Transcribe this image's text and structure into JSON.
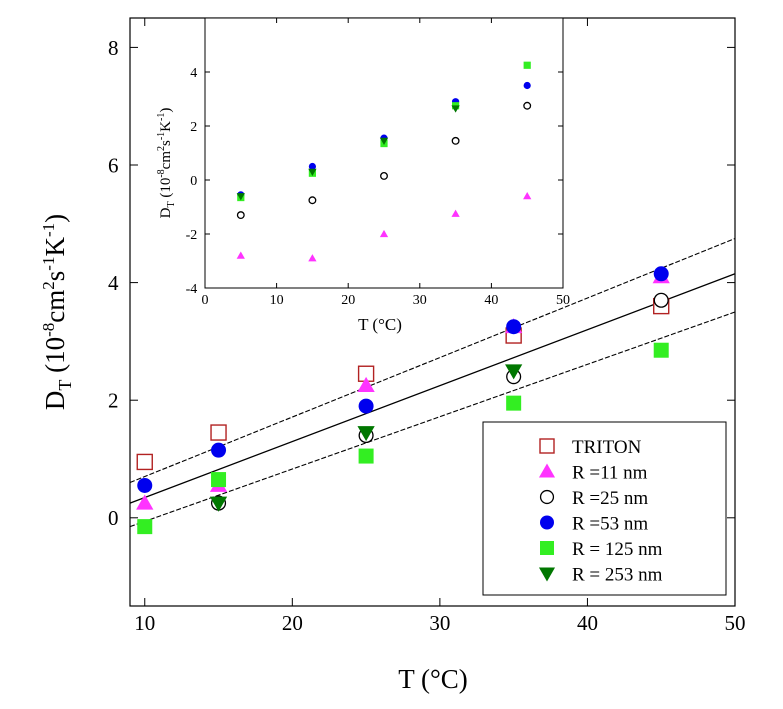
{
  "chart_data": [
    {
      "type": "scatter",
      "title": "",
      "xlabel": "T (°C)",
      "ylabel": "D_T (10^-8 cm^2 s^-1 K^-1)",
      "xlim": [
        9,
        50
      ],
      "ylim": [
        -1.5,
        8.5
      ],
      "xticks": [
        10,
        20,
        30,
        40,
        50
      ],
      "yticks": [
        0,
        2,
        4,
        6,
        8
      ],
      "grid": false,
      "legend_position": "bottom-right",
      "series": [
        {
          "name": "TRITON",
          "marker": "open-square",
          "color": "#b22222",
          "x": [
            10,
            15,
            25,
            35,
            45
          ],
          "y": [
            0.95,
            1.45,
            2.45,
            3.1,
            3.6
          ]
        },
        {
          "name": "R =11 nm",
          "marker": "triangle-up",
          "color": "#ff33ff",
          "x": [
            10,
            15,
            25,
            35,
            45
          ],
          "y": [
            0.25,
            0.55,
            2.25,
            3.25,
            4.1
          ]
        },
        {
          "name": "R =25 nm",
          "marker": "open-circle",
          "color": "#000000",
          "x": [
            15,
            25,
            35,
            45
          ],
          "y": [
            0.25,
            1.4,
            2.4,
            3.7
          ]
        },
        {
          "name": "R =53 nm",
          "marker": "circle",
          "color": "#0000ee",
          "x": [
            10,
            15,
            25,
            35,
            45
          ],
          "y": [
            0.55,
            1.15,
            1.9,
            3.25,
            4.15
          ]
        },
        {
          "name": "R = 125 nm",
          "marker": "square",
          "color": "#33ee22",
          "x": [
            10,
            15,
            25,
            35,
            45
          ],
          "y": [
            -0.15,
            0.65,
            1.05,
            1.95,
            2.85
          ]
        },
        {
          "name": "R = 253 nm",
          "marker": "triangle-down",
          "color": "#007700",
          "x": [
            15,
            25,
            35
          ],
          "y": [
            0.25,
            1.45,
            2.5
          ]
        }
      ],
      "lines": [
        {
          "style": "solid",
          "x": [
            9,
            50
          ],
          "y": [
            0.25,
            4.15
          ]
        },
        {
          "style": "dashed",
          "x": [
            9,
            50
          ],
          "y": [
            0.6,
            4.75
          ]
        },
        {
          "style": "dashed",
          "x": [
            9,
            50
          ],
          "y": [
            -0.15,
            3.5
          ]
        }
      ]
    },
    {
      "type": "scatter",
      "title": "",
      "xlabel": "T (°C)",
      "ylabel": "D_T (10^-8 cm^2 s^-1 K^-1)",
      "xlim": [
        0,
        50
      ],
      "ylim": [
        -4,
        6
      ],
      "xticks": [
        0,
        10,
        20,
        30,
        40,
        50
      ],
      "yticks": [
        -4,
        -2,
        0,
        2,
        4
      ],
      "grid": false,
      "series": [
        {
          "name": "R =11 nm",
          "marker": "triangle-up",
          "color": "#ff33ff",
          "x": [
            5,
            15,
            25,
            35,
            45
          ],
          "y": [
            -2.8,
            -2.9,
            -2.0,
            -1.25,
            -0.6
          ]
        },
        {
          "name": "R =25 nm",
          "marker": "open-circle",
          "color": "#000000",
          "x": [
            5,
            15,
            25,
            35,
            45
          ],
          "y": [
            -1.3,
            -0.75,
            0.15,
            1.45,
            2.75
          ]
        },
        {
          "name": "R =53 nm",
          "marker": "circle",
          "color": "#0000ee",
          "x": [
            5,
            15,
            25,
            35,
            45
          ],
          "y": [
            -0.55,
            0.5,
            1.55,
            2.9,
            3.5
          ]
        },
        {
          "name": "R = 125 nm",
          "marker": "square",
          "color": "#33ee22",
          "x": [
            5,
            15,
            25,
            35,
            45
          ],
          "y": [
            -0.65,
            0.25,
            1.35,
            2.75,
            4.25
          ]
        },
        {
          "name": "R = 253 nm",
          "marker": "triangle-down",
          "color": "#007700",
          "x": [
            5,
            15,
            25,
            35
          ],
          "y": [
            -0.6,
            0.3,
            1.45,
            2.65
          ]
        }
      ]
    }
  ]
}
